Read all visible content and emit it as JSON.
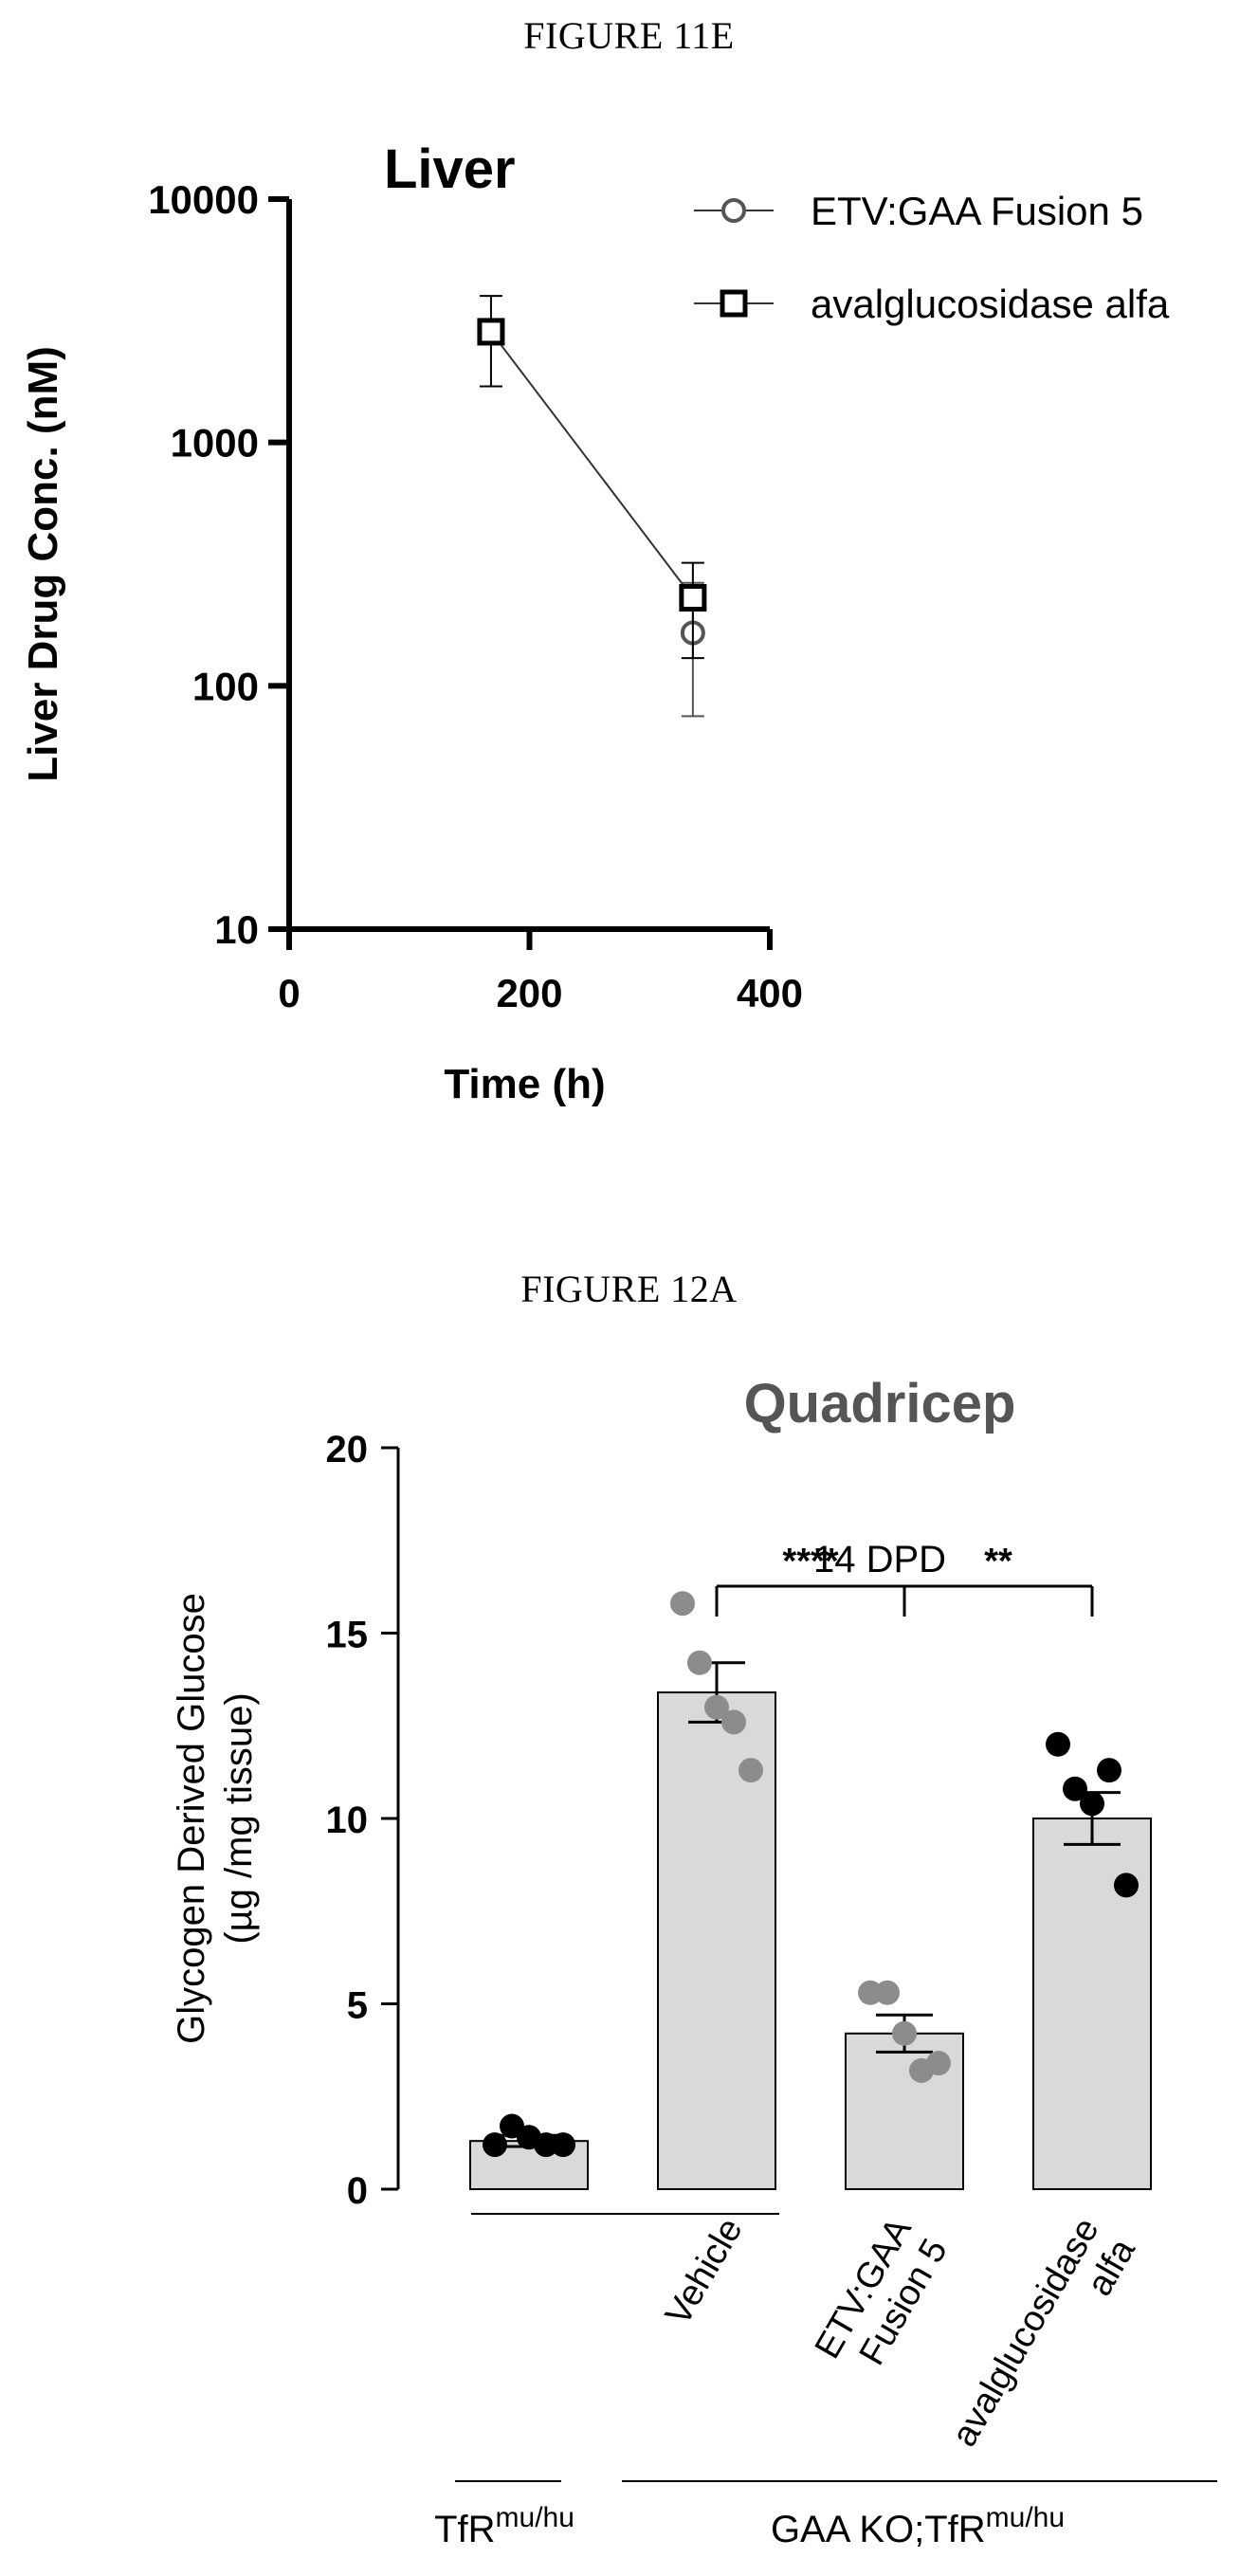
{
  "figures": [
    {
      "caption": "FIGURE 11E"
    },
    {
      "caption": "FIGURE 12A"
    }
  ],
  "chart_data": [
    {
      "type": "line",
      "title": "Liver",
      "xlabel": "Time (h)",
      "ylabel": "Liver Drug Conc. (nM)",
      "x_scale": "linear",
      "y_scale": "log",
      "xlim": [
        0,
        400
      ],
      "ylim": [
        10,
        10000
      ],
      "x_ticks": [
        0,
        200,
        400
      ],
      "x_tick_labels": [
        "0",
        "200",
        "400"
      ],
      "y_ticks": [
        10,
        100,
        1000,
        10000
      ],
      "y_tick_labels": [
        "10",
        "100",
        "1000",
        "10000"
      ],
      "legend_position": "top-right",
      "grid": false,
      "series": [
        {
          "name": "ETV:GAA Fusion 5",
          "marker": "circle",
          "color": "#555555",
          "points": [
            {
              "x": 336,
              "y": 165,
              "err_low": 75,
              "err_high": 265
            }
          ]
        },
        {
          "name": "avalglucosidase alfa",
          "marker": "square",
          "color": "#000000",
          "points": [
            {
              "x": 168,
              "y": 2850,
              "err_low": 1700,
              "err_high": 4000
            },
            {
              "x": 336,
              "y": 230,
              "err_low": 130,
              "err_high": 320
            }
          ]
        }
      ]
    },
    {
      "type": "bar",
      "title": "Quadricep",
      "subtitle": "14 DPD",
      "ylabel_line1": "Glycogen Derived Glucose",
      "ylabel_line2": "(µg /mg tissue)",
      "ylim": [
        0,
        20
      ],
      "y_ticks": [
        0,
        5,
        10,
        15,
        20
      ],
      "y_tick_labels": [
        "0",
        "5",
        "10",
        "15",
        "20"
      ],
      "grid": false,
      "bars": [
        {
          "label_lines": [],
          "value": 1.3,
          "err": 0.15,
          "point_color": "#000000",
          "points": [
            1.2,
            1.7,
            1.4,
            1.2,
            1.2
          ]
        },
        {
          "label_lines": [
            "Vehicle"
          ],
          "value": 13.4,
          "err": 0.8,
          "point_color": "#8c8c8c",
          "points": [
            15.8,
            14.2,
            13.0,
            12.6,
            11.3
          ]
        },
        {
          "label_lines": [
            "ETV:GAA",
            "Fusion 5"
          ],
          "value": 4.2,
          "err": 0.5,
          "point_color": "#8c8c8c",
          "points": [
            5.3,
            5.3,
            4.2,
            3.2,
            3.4
          ]
        },
        {
          "label_lines": [
            "avalglucosidase",
            "alfa"
          ],
          "value": 10.0,
          "err": 0.7,
          "point_color": "#000000",
          "points": [
            12.0,
            10.8,
            10.4,
            11.3,
            8.2
          ]
        }
      ],
      "significance": [
        {
          "from": 1,
          "to": 2,
          "label": "****"
        },
        {
          "from": 2,
          "to": 3,
          "label": "**"
        }
      ],
      "groups": [
        {
          "base": "TfR",
          "sup": "mu/hu",
          "bars": [
            0
          ]
        },
        {
          "base": "GAA KO;TfR",
          "sup": "mu/hu",
          "bars": [
            1,
            2,
            3
          ]
        }
      ]
    }
  ]
}
